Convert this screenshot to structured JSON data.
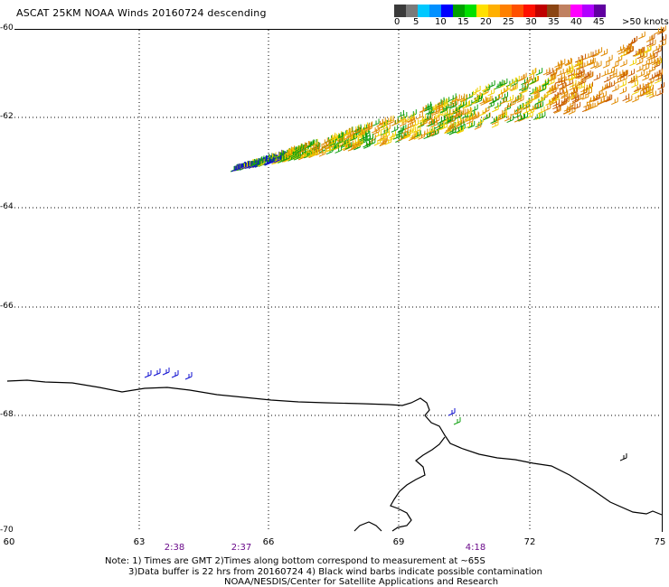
{
  "title": "ASCAT 25KM NOAA Winds 20160724 descending",
  "colorbar": {
    "colors": [
      "#3a3a3a",
      "#7a7a7a",
      "#00c8ff",
      "#0090ff",
      "#0000ff",
      "#00a000",
      "#00e000",
      "#ffe000",
      "#ffb000",
      "#ff8000",
      "#ff5000",
      "#ff1000",
      "#c00000",
      "#8b4513",
      "#c08060",
      "#ff00ff",
      "#b000ff",
      "#6000a0"
    ],
    "labels": [
      "0",
      "5",
      "10",
      "15",
      "20",
      "25",
      "30",
      "35",
      "40",
      "45",
      ">50 knots"
    ]
  },
  "axes": {
    "lat_ticks": [
      "-60",
      "-62",
      "-64",
      "-66",
      "-68",
      "-70"
    ],
    "lon_ticks": [
      "60",
      "63",
      "66",
      "69",
      "72",
      "75"
    ],
    "times": [
      "2:38",
      "2:37",
      "4:18"
    ]
  },
  "notes": [
    "Note: 1) Times are GMT 2)Times along bottom correspond to measurement at ~65S",
    "3)Data buffer is 22 hrs from 20160724 4) Black wind barbs indicate possible contamination",
    "NOAA/NESDIS/Center for Satellite Applications and Research"
  ],
  "wind_colors": {
    "blue": "#1010d0",
    "green": "#10a010",
    "yellow": "#f0d000",
    "orange": "#e08a00",
    "dark_orange": "#c85a00"
  }
}
